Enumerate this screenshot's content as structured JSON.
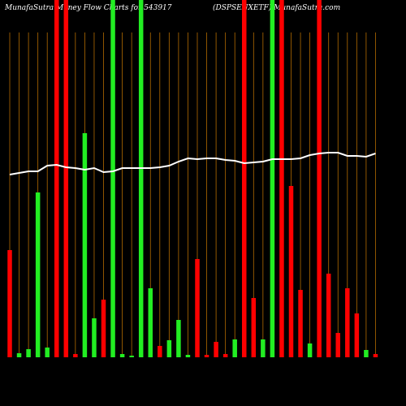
{
  "chart_data": {
    "type": "bar",
    "title": "MunafaSutra Money Flow Charts for 543917",
    "subtitle": "(DSPSENXETF) MunafaSutra.com",
    "ylim": [
      0,
      440
    ],
    "grid_color": "#b36b00",
    "line_color": "#ffffff",
    "series": [
      {
        "name": "flow",
        "colors": [
          "#ff0000",
          "#22ee22",
          "#22ee22",
          "#22ee22",
          "#22ee22",
          "#ff0000",
          "#ff0000",
          "#ff0000",
          "#22ee22",
          "#22ee22",
          "#ff0000",
          "#22ee22",
          "#22ee22",
          "#22ee22",
          "#22ee22",
          "#22ee22",
          "#ff0000",
          "#22ee22",
          "#22ee22",
          "#22ee22",
          "#ff0000",
          "#ff0000",
          "#ff0000",
          "#ff0000",
          "#22ee22",
          "#ff0000",
          "#ff0000",
          "#22ee22",
          "#22ee22",
          "#ff0000",
          "#ff0000",
          "#ff0000",
          "#22ee22",
          "#ff0000",
          "#ff0000",
          "#ff0000",
          "#ff0000",
          "#ff0000",
          "#22ee22",
          "#ff0000"
        ],
        "values": [
          132,
          5,
          10,
          203,
          12,
          440,
          440,
          4,
          276,
          48,
          71,
          440,
          4,
          2,
          440,
          85,
          14,
          21,
          46,
          3,
          121,
          3,
          19,
          4,
          22,
          440,
          73,
          22,
          440,
          440,
          211,
          83,
          17,
          440,
          103,
          30,
          85,
          54,
          9,
          4
        ]
      },
      {
        "name": "price",
        "values": [
          225,
          227,
          229,
          229,
          236,
          237,
          234,
          233,
          231,
          233,
          228,
          229,
          233,
          233,
          233,
          233,
          234,
          236,
          241,
          245,
          244,
          245,
          245,
          243,
          242,
          239,
          240,
          241,
          244,
          244,
          244,
          245,
          249,
          251,
          252,
          252,
          248,
          248,
          247,
          251
        ]
      }
    ]
  }
}
